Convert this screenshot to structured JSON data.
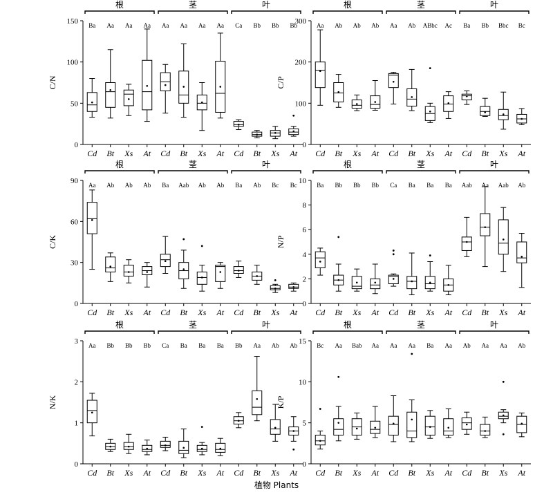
{
  "x_title": "植物 Plants",
  "organs": [
    "根",
    "茎",
    "叶"
  ],
  "species": [
    "Cd",
    "Bt",
    "Xs",
    "At"
  ],
  "chart_data": [
    {
      "type": "boxplot",
      "ylabel": "C/N",
      "ylim": [
        0,
        150
      ],
      "yticks": [
        0,
        50,
        100,
        150
      ],
      "letters": [
        [
          "Ba",
          "Aa",
          "Aa",
          "Aa"
        ],
        [
          "Aa",
          "Aa",
          "Aa",
          "Aa"
        ],
        [
          "Ca",
          "Bb",
          "Bb",
          "Bb"
        ]
      ],
      "boxes": [
        [
          {
            "min": 33,
            "q1": 40,
            "median": 48,
            "q3": 63,
            "max": 80,
            "mean": 51,
            "outliers": []
          },
          {
            "min": 32,
            "q1": 45,
            "median": 64,
            "q3": 75,
            "max": 115,
            "mean": 66,
            "outliers": []
          },
          {
            "min": 35,
            "q1": 47,
            "median": 61,
            "q3": 66,
            "max": 73,
            "mean": 55,
            "outliers": []
          },
          {
            "min": 28,
            "q1": 42,
            "median": 64,
            "q3": 102,
            "max": 140,
            "mean": 71,
            "outliers": []
          }
        ],
        [
          {
            "min": 38,
            "q1": 65,
            "median": 76,
            "q3": 87,
            "max": 97,
            "mean": 72,
            "outliers": []
          },
          {
            "min": 33,
            "q1": 50,
            "median": 60,
            "q3": 89,
            "max": 122,
            "mean": 70,
            "outliers": []
          },
          {
            "min": 17,
            "q1": 42,
            "median": 50,
            "q3": 60,
            "max": 75,
            "mean": 51,
            "outliers": []
          },
          {
            "min": 32,
            "q1": 39,
            "median": 62,
            "q3": 101,
            "max": 135,
            "mean": 70,
            "outliers": []
          }
        ],
        [
          {
            "min": 18,
            "q1": 22,
            "median": 24,
            "q3": 28,
            "max": 30,
            "mean": 24,
            "outliers": []
          },
          {
            "min": 8,
            "q1": 10,
            "median": 12,
            "q3": 15,
            "max": 17,
            "mean": 12,
            "outliers": []
          },
          {
            "min": 7,
            "q1": 10,
            "median": 14,
            "q3": 17,
            "max": 22,
            "mean": 14,
            "outliers": []
          },
          {
            "min": 10,
            "q1": 12,
            "median": 15,
            "q3": 19,
            "max": 22,
            "mean": 16,
            "outliers": [
              35
            ]
          }
        ]
      ]
    },
    {
      "type": "boxplot",
      "ylabel": "C/P",
      "ylim": [
        0,
        300
      ],
      "yticks": [
        0,
        100,
        200,
        300
      ],
      "letters": [
        [
          "Aa",
          "Ab",
          "Ab",
          "Ab"
        ],
        [
          "Aa",
          "Ab",
          "ABbc",
          "Ac"
        ],
        [
          "Ba",
          "Bb",
          "Bbc",
          "Bc"
        ]
      ],
      "boxes": [
        [
          {
            "min": 95,
            "q1": 138,
            "median": 180,
            "q3": 200,
            "max": 278,
            "mean": 178,
            "outliers": []
          },
          {
            "min": 90,
            "q1": 103,
            "median": 125,
            "q3": 150,
            "max": 170,
            "mean": 127,
            "outliers": []
          },
          {
            "min": 82,
            "q1": 88,
            "median": 95,
            "q3": 108,
            "max": 120,
            "mean": 98,
            "outliers": []
          },
          {
            "min": 83,
            "q1": 88,
            "median": 97,
            "q3": 118,
            "max": 155,
            "mean": 103,
            "outliers": []
          }
        ],
        [
          {
            "min": 98,
            "q1": 138,
            "median": 168,
            "q3": 172,
            "max": 175,
            "mean": 152,
            "outliers": []
          },
          {
            "min": 82,
            "q1": 93,
            "median": 110,
            "q3": 135,
            "max": 182,
            "mean": 115,
            "outliers": []
          },
          {
            "min": 53,
            "q1": 58,
            "median": 75,
            "q3": 92,
            "max": 100,
            "mean": 80,
            "outliers": [
              185
            ]
          },
          {
            "min": 63,
            "q1": 80,
            "median": 98,
            "q3": 118,
            "max": 128,
            "mean": 100,
            "outliers": []
          }
        ],
        [
          {
            "min": 97,
            "q1": 108,
            "median": 118,
            "q3": 122,
            "max": 130,
            "mean": 117,
            "outliers": []
          },
          {
            "min": 68,
            "q1": 70,
            "median": 80,
            "q3": 92,
            "max": 112,
            "mean": 78,
            "outliers": []
          },
          {
            "min": 37,
            "q1": 60,
            "median": 70,
            "q3": 85,
            "max": 127,
            "mean": 73,
            "outliers": []
          },
          {
            "min": 48,
            "q1": 52,
            "median": 62,
            "q3": 73,
            "max": 87,
            "mean": 62,
            "outliers": []
          }
        ]
      ]
    },
    {
      "type": "boxplot",
      "ylabel": "C/K",
      "ylim": [
        0,
        90
      ],
      "yticks": [
        0,
        30,
        60,
        90
      ],
      "letters": [
        [
          "Aa",
          "Ab",
          "Ab",
          "Ab"
        ],
        [
          "Ba",
          "Aab",
          "Ab",
          "Ab"
        ],
        [
          "Ba",
          "Ab",
          "Bc",
          "Bc"
        ]
      ],
      "boxes": [
        [
          {
            "min": 25,
            "q1": 51,
            "median": 62,
            "q3": 74,
            "max": 83,
            "mean": 61,
            "outliers": []
          },
          {
            "min": 16,
            "q1": 23,
            "median": 26,
            "q3": 34,
            "max": 37,
            "mean": 27,
            "outliers": []
          },
          {
            "min": 15,
            "q1": 20,
            "median": 23,
            "q3": 28,
            "max": 32,
            "mean": 23,
            "outliers": []
          },
          {
            "min": 12,
            "q1": 21,
            "median": 24,
            "q3": 27,
            "max": 30,
            "mean": 23,
            "outliers": []
          }
        ],
        [
          {
            "min": 22,
            "q1": 27,
            "median": 32,
            "q3": 36,
            "max": 49,
            "mean": 31,
            "outliers": []
          },
          {
            "min": 11,
            "q1": 18,
            "median": 24,
            "q3": 30,
            "max": 39,
            "mean": 25,
            "outliers": [
              47
            ]
          },
          {
            "min": 9,
            "q1": 14,
            "median": 19,
            "q3": 23,
            "max": 28,
            "mean": 19,
            "outliers": [
              42
            ]
          },
          {
            "min": 11,
            "q1": 16,
            "median": 27,
            "q3": 28,
            "max": 30,
            "mean": 23,
            "outliers": []
          }
        ],
        [
          {
            "min": 19,
            "q1": 22,
            "median": 24,
            "q3": 27,
            "max": 31,
            "mean": 24,
            "outliers": []
          },
          {
            "min": 14,
            "q1": 17,
            "median": 20,
            "q3": 23,
            "max": 28,
            "mean": 20,
            "outliers": []
          },
          {
            "min": 8,
            "q1": 10,
            "median": 11,
            "q3": 13,
            "max": 14,
            "mean": 11,
            "outliers": [
              17
            ]
          },
          {
            "min": 9,
            "q1": 11,
            "median": 12,
            "q3": 14,
            "max": 15,
            "mean": 12,
            "outliers": []
          }
        ]
      ]
    },
    {
      "type": "boxplot",
      "ylabel": "N/P",
      "ylim": [
        0,
        10
      ],
      "yticks": [
        0,
        2,
        4,
        6,
        8,
        10
      ],
      "letters": [
        [
          "Ba",
          "Bb",
          "Bb",
          "Bb"
        ],
        [
          "Ca",
          "Ba",
          "Ba",
          "Ba"
        ],
        [
          "Aab",
          "Aa",
          "Aab",
          "Ab"
        ]
      ],
      "boxes": [
        [
          {
            "min": 2.3,
            "q1": 2.9,
            "median": 3.7,
            "q3": 4.2,
            "max": 4.5,
            "mean": 3.4,
            "outliers": []
          },
          {
            "min": 1.0,
            "q1": 1.5,
            "median": 1.9,
            "q3": 2.3,
            "max": 3.2,
            "mean": 1.9,
            "outliers": [
              5.4
            ]
          },
          {
            "min": 1.0,
            "q1": 1.2,
            "median": 1.4,
            "q3": 2.2,
            "max": 2.8,
            "mean": 1.7,
            "outliers": []
          },
          {
            "min": 0.8,
            "q1": 1.2,
            "median": 1.5,
            "q3": 2.0,
            "max": 3.2,
            "mean": 1.7,
            "outliers": []
          }
        ],
        [
          {
            "min": 1.4,
            "q1": 1.6,
            "median": 2.2,
            "q3": 2.3,
            "max": 2.4,
            "mean": 2.0,
            "outliers": [
              4.0,
              4.3
            ]
          },
          {
            "min": 0.7,
            "q1": 1.2,
            "median": 1.8,
            "q3": 2.2,
            "max": 4.1,
            "mean": 1.8,
            "outliers": []
          },
          {
            "min": 1.0,
            "q1": 1.2,
            "median": 1.6,
            "q3": 2.2,
            "max": 3.4,
            "mean": 1.7,
            "outliers": [
              3.9
            ]
          },
          {
            "min": 0.7,
            "q1": 1.0,
            "median": 1.5,
            "q3": 2.0,
            "max": 3.1,
            "mean": 1.5,
            "outliers": []
          }
        ],
        [
          {
            "min": 3.8,
            "q1": 4.3,
            "median": 5.0,
            "q3": 5.4,
            "max": 7.0,
            "mean": 5.0,
            "outliers": []
          },
          {
            "min": 3.0,
            "q1": 5.5,
            "median": 6.2,
            "q3": 7.3,
            "max": 9.5,
            "mean": 6.2,
            "outliers": []
          },
          {
            "min": 2.6,
            "q1": 4.0,
            "median": 4.9,
            "q3": 6.8,
            "max": 7.8,
            "mean": 5.2,
            "outliers": []
          },
          {
            "min": 1.3,
            "q1": 3.3,
            "median": 3.7,
            "q3": 5.0,
            "max": 5.7,
            "mean": 3.8,
            "outliers": []
          }
        ]
      ]
    },
    {
      "type": "boxplot",
      "ylabel": "N/K",
      "ylim": [
        0,
        3
      ],
      "yticks": [
        0,
        1,
        2,
        3
      ],
      "letters": [
        [
          "Aa",
          "Bb",
          "Bb",
          "Bb"
        ],
        [
          "Ca",
          "Ba",
          "Ba",
          "Ba"
        ],
        [
          "Bb",
          "Aa",
          "Ab",
          "Ab"
        ]
      ],
      "boxes": [
        [
          {
            "min": 0.68,
            "q1": 1.0,
            "median": 1.3,
            "q3": 1.55,
            "max": 1.72,
            "mean": 1.25,
            "outliers": []
          },
          {
            "min": 0.3,
            "q1": 0.35,
            "median": 0.42,
            "q3": 0.5,
            "max": 0.6,
            "mean": 0.42,
            "outliers": []
          },
          {
            "min": 0.25,
            "q1": 0.35,
            "median": 0.42,
            "q3": 0.52,
            "max": 0.72,
            "mean": 0.42,
            "outliers": []
          },
          {
            "min": 0.22,
            "q1": 0.3,
            "median": 0.35,
            "q3": 0.45,
            "max": 0.58,
            "mean": 0.37,
            "outliers": []
          }
        ],
        [
          {
            "min": 0.32,
            "q1": 0.4,
            "median": 0.45,
            "q3": 0.55,
            "max": 0.65,
            "mean": 0.45,
            "outliers": []
          },
          {
            "min": 0.15,
            "q1": 0.25,
            "median": 0.33,
            "q3": 0.55,
            "max": 0.85,
            "mean": 0.39,
            "outliers": []
          },
          {
            "min": 0.22,
            "q1": 0.3,
            "median": 0.35,
            "q3": 0.45,
            "max": 0.52,
            "mean": 0.37,
            "outliers": [
              0.9
            ]
          },
          {
            "min": 0.2,
            "q1": 0.28,
            "median": 0.35,
            "q3": 0.5,
            "max": 0.62,
            "mean": 0.37,
            "outliers": []
          }
        ],
        [
          {
            "min": 0.88,
            "q1": 0.97,
            "median": 1.05,
            "q3": 1.15,
            "max": 1.25,
            "mean": 1.05,
            "outliers": []
          },
          {
            "min": 1.05,
            "q1": 1.2,
            "median": 1.38,
            "q3": 1.78,
            "max": 2.62,
            "mean": 1.58,
            "outliers": []
          },
          {
            "min": 0.55,
            "q1": 0.72,
            "median": 0.85,
            "q3": 1.08,
            "max": 1.45,
            "mean": 0.88,
            "outliers": []
          },
          {
            "min": 0.55,
            "q1": 0.7,
            "median": 0.8,
            "q3": 0.9,
            "max": 1.15,
            "mean": 0.8,
            "outliers": [
              0.35
            ]
          }
        ]
      ]
    },
    {
      "type": "boxplot",
      "ylabel": "K/P",
      "ylim": [
        0,
        15
      ],
      "yticks": [
        0,
        5,
        10,
        15
      ],
      "letters": [
        [
          "Bc",
          "Aa",
          "Bab",
          "Aa"
        ],
        [
          "Aa",
          "Aa",
          "Ba",
          "Aa"
        ],
        [
          "Ab",
          "Aa",
          "Aa",
          "Ab"
        ]
      ],
      "boxes": [
        [
          {
            "min": 1.8,
            "q1": 2.3,
            "median": 2.8,
            "q3": 3.5,
            "max": 4.0,
            "mean": 2.8,
            "outliers": [
              6.7
            ]
          },
          {
            "min": 2.8,
            "q1": 3.5,
            "median": 4.2,
            "q3": 5.5,
            "max": 7.0,
            "mean": 5.0,
            "outliers": [
              10.6
            ]
          },
          {
            "min": 3.0,
            "q1": 3.5,
            "median": 4.5,
            "q3": 5.5,
            "max": 6.2,
            "mean": 4.3,
            "outliers": []
          },
          {
            "min": 3.2,
            "q1": 3.7,
            "median": 4.2,
            "q3": 5.2,
            "max": 7.0,
            "mean": 4.4,
            "outliers": []
          }
        ],
        [
          {
            "min": 2.7,
            "q1": 3.5,
            "median": 4.8,
            "q3": 5.8,
            "max": 8.3,
            "mean": 4.9,
            "outliers": []
          },
          {
            "min": 2.7,
            "q1": 3.2,
            "median": 4.0,
            "q3": 6.3,
            "max": 7.8,
            "mean": 5.4,
            "outliers": [
              13.4
            ]
          },
          {
            "min": 3.1,
            "q1": 3.5,
            "median": 4.5,
            "q3": 5.8,
            "max": 6.5,
            "mean": 4.5,
            "outliers": []
          },
          {
            "min": 3.2,
            "q1": 3.5,
            "median": 4.0,
            "q3": 5.5,
            "max": 6.7,
            "mean": 4.4,
            "outliers": []
          }
        ],
        [
          {
            "min": 3.6,
            "q1": 4.2,
            "median": 5.0,
            "q3": 5.6,
            "max": 6.3,
            "mean": 4.8,
            "outliers": []
          },
          {
            "min": 3.2,
            "q1": 3.5,
            "median": 4.0,
            "q3": 4.8,
            "max": 5.7,
            "mean": 4.0,
            "outliers": []
          },
          {
            "min": 5.0,
            "q1": 5.5,
            "median": 5.8,
            "q3": 6.3,
            "max": 6.6,
            "mean": 5.9,
            "outliers": [
              3.6,
              10.0
            ]
          },
          {
            "min": 3.3,
            "q1": 3.8,
            "median": 4.8,
            "q3": 5.8,
            "max": 6.2,
            "mean": 4.9,
            "outliers": []
          }
        ]
      ]
    }
  ]
}
